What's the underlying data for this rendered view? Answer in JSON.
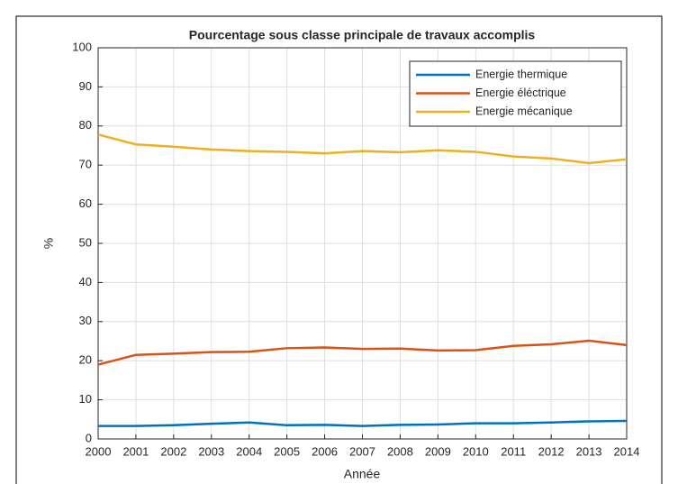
{
  "chart_data": {
    "type": "line",
    "title": "Pourcentage sous classe principale de travaux accomplis",
    "xlabel": "Année",
    "ylabel": "%",
    "x": [
      2000,
      2001,
      2002,
      2003,
      2004,
      2005,
      2006,
      2007,
      2008,
      2009,
      2010,
      2011,
      2012,
      2013,
      2014
    ],
    "series": [
      {
        "name": "Energie thermique",
        "color": "#0072bd",
        "values": [
          3.3,
          3.3,
          3.5,
          3.9,
          4.2,
          3.5,
          3.6,
          3.3,
          3.6,
          3.7,
          4.0,
          4.0,
          4.2,
          4.5,
          4.6
        ]
      },
      {
        "name": "Energie éléctrique",
        "color": "#d95319",
        "values": [
          19.0,
          21.5,
          21.8,
          22.2,
          22.3,
          23.2,
          23.4,
          23.0,
          23.1,
          22.6,
          22.7,
          23.8,
          24.2,
          25.1,
          24.0
        ]
      },
      {
        "name": "Energie mécanique",
        "color": "#edb120",
        "values": [
          77.8,
          75.3,
          74.7,
          74.0,
          73.6,
          73.4,
          73.0,
          73.6,
          73.3,
          73.8,
          73.4,
          72.2,
          71.7,
          70.5,
          71.5
        ]
      }
    ],
    "xlim": [
      2000,
      2014
    ],
    "xticks": [
      2000,
      2001,
      2002,
      2003,
      2004,
      2005,
      2006,
      2007,
      2008,
      2009,
      2010,
      2011,
      2012,
      2013,
      2014
    ],
    "ylim": [
      0,
      100
    ],
    "yticks": [
      0,
      10,
      20,
      30,
      40,
      50,
      60,
      70,
      80,
      90,
      100
    ],
    "grid": true,
    "legend": "top-right"
  }
}
